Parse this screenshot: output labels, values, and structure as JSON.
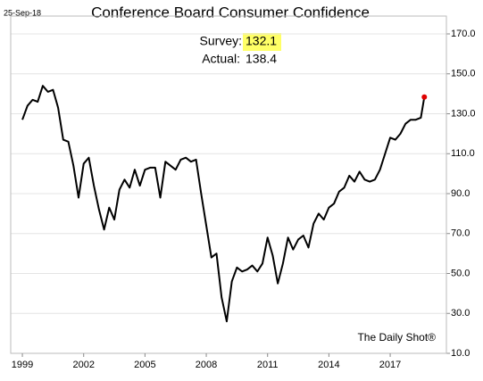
{
  "chart_data": {
    "type": "line",
    "title": "Conference Board Consumer Confidence",
    "date_label": "25-Sep-18",
    "annotations": {
      "survey_label": "Survey:",
      "survey": 132.1,
      "actual_label": "Actual:",
      "actual": 138.4
    },
    "watermark": "The Daily Shot®",
    "x": [
      1999,
      1999.25,
      1999.5,
      1999.75,
      2000,
      2000.25,
      2000.5,
      2000.75,
      2001,
      2001.25,
      2001.5,
      2001.75,
      2002,
      2002.25,
      2002.5,
      2002.75,
      2003,
      2003.25,
      2003.5,
      2003.75,
      2004,
      2004.25,
      2004.5,
      2004.75,
      2005,
      2005.25,
      2005.5,
      2005.75,
      2006,
      2006.25,
      2006.5,
      2006.75,
      2007,
      2007.25,
      2007.5,
      2007.75,
      2008,
      2008.25,
      2008.5,
      2008.75,
      2009,
      2009.25,
      2009.5,
      2009.75,
      2010,
      2010.25,
      2010.5,
      2010.75,
      2011,
      2011.25,
      2011.5,
      2011.75,
      2012,
      2012.25,
      2012.5,
      2012.75,
      2013,
      2013.25,
      2013.5,
      2013.75,
      2014,
      2014.25,
      2014.5,
      2014.75,
      2015,
      2015.25,
      2015.5,
      2015.75,
      2016,
      2016.25,
      2016.5,
      2016.75,
      2017,
      2017.25,
      2017.5,
      2017.75,
      2018,
      2018.25,
      2018.5,
      2018.67
    ],
    "series": [
      {
        "name": "Consumer Confidence",
        "color": "#000000",
        "last_point_color": "#e00000",
        "values": [
          127,
          134,
          137,
          136,
          144,
          141,
          142,
          133,
          117,
          116,
          104,
          88,
          105,
          108,
          94,
          82,
          72,
          83,
          77,
          92,
          97,
          93,
          102,
          94,
          102,
          103,
          103,
          88,
          106,
          104,
          102,
          107,
          108,
          106,
          107,
          90,
          74,
          58,
          60,
          38,
          26,
          46,
          53,
          51,
          52,
          54,
          51,
          55,
          68,
          59,
          45,
          55,
          68,
          62,
          67,
          69,
          63,
          75,
          80,
          77,
          83,
          85,
          91,
          93,
          99,
          96,
          101,
          97,
          96,
          97,
          102,
          110,
          118,
          117,
          120,
          125,
          127,
          127,
          128,
          138.4
        ]
      }
    ],
    "xlim": [
      1998.43,
      2019.75
    ],
    "xticks": [
      1999,
      2002,
      2005,
      2008,
      2011,
      2014,
      2017
    ],
    "ylim": [
      10,
      170
    ],
    "yticks": [
      {
        "value": 10,
        "label": "10.0"
      },
      {
        "value": 30,
        "label": "30.0"
      },
      {
        "value": 50,
        "label": "50.0"
      },
      {
        "value": 70,
        "label": "70.0"
      },
      {
        "value": 90,
        "label": "90.0"
      },
      {
        "value": 110,
        "label": "110.0"
      },
      {
        "value": 130,
        "label": "130.0"
      },
      {
        "value": 150,
        "label": "150.0"
      },
      {
        "value": 170,
        "label": "170.0"
      }
    ],
    "grid": true
  }
}
